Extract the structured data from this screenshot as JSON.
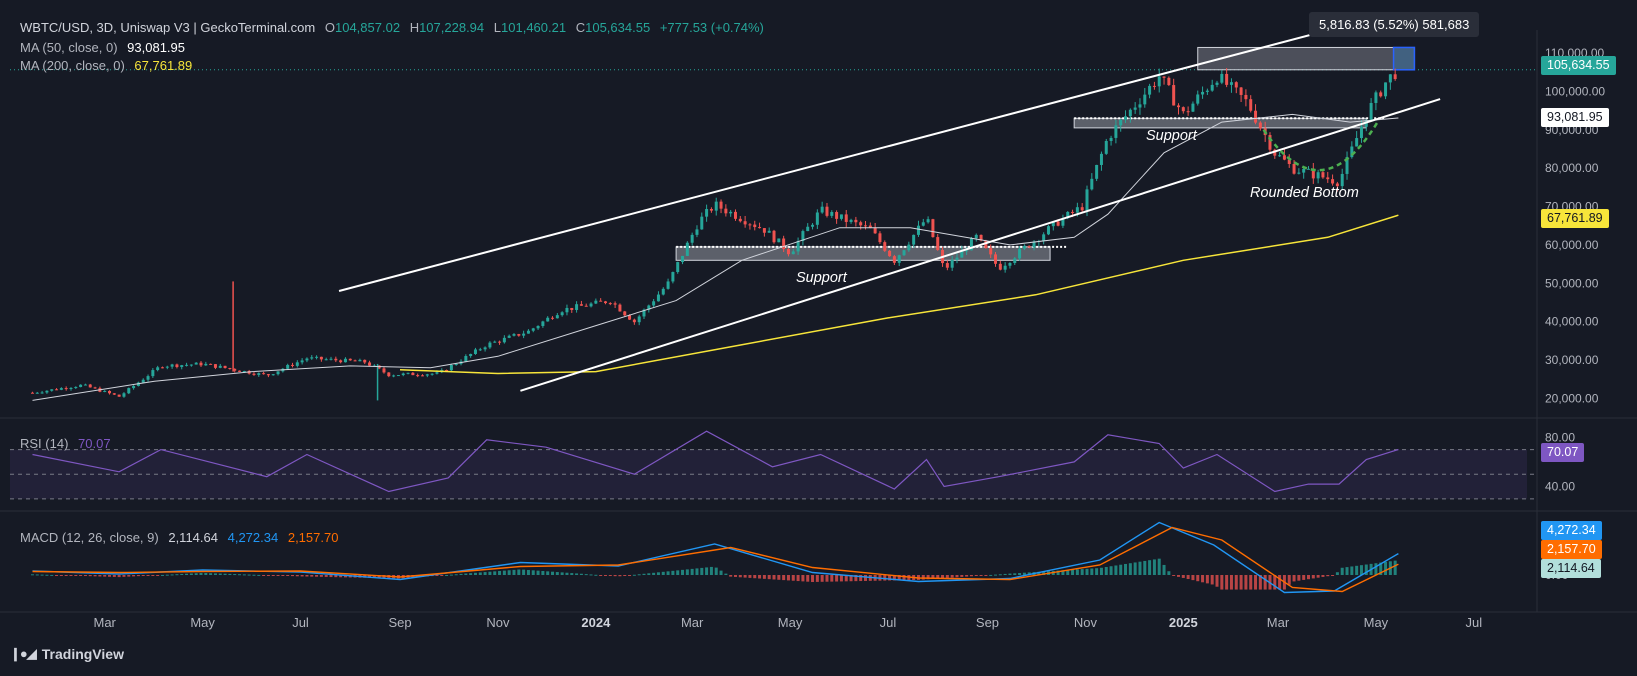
{
  "header": {
    "symbol": "WBTC/USD, 3D, Uniswap V3 | GeckoTerminal.com",
    "o_label": "O",
    "o": "104,857.02",
    "h_label": "H",
    "h": "107,228.94",
    "l_label": "L",
    "l": "101,460.21",
    "c_label": "C",
    "c": "105,634.55",
    "change": "+777.53 (+0.74%)",
    "ma50_label": "MA (50, close, 0)",
    "ma50_value": "93,081.95",
    "ma200_label": "MA (200, close, 0)",
    "ma200_value": "67,761.89"
  },
  "measure_tooltip": "5,816.83 (5.52%) 581,683",
  "price_badges": {
    "last": "105,634.55",
    "ma50": "93,081.95",
    "ma200": "67,761.89"
  },
  "annotations": {
    "support_left": "Support",
    "support_right": "Support",
    "rounded_bottom": "Rounded Bottom"
  },
  "rsi": {
    "label": "RSI (14)",
    "value": "70.07",
    "ticks": [
      "80.00",
      "40.00"
    ]
  },
  "macd": {
    "label": "MACD (12, 26, close, 9)",
    "hist": "2,114.64",
    "macd": "4,272.34",
    "signal": "2,157.70",
    "ticks": [
      "0.00"
    ]
  },
  "brand": "TradingView",
  "colors": {
    "background": "#161a25",
    "up": "#26a69a",
    "down": "#ef5350",
    "ma50": "#d1d4dc",
    "ma200": "#f7e53a",
    "rsi": "#7e57c2",
    "macd": "#2196f3",
    "signal": "#ff6d00"
  },
  "chart_data": {
    "type": "candlestick",
    "title": "WBTC/USD, 3D, Uniswap V3",
    "ylim": [
      17000,
      116000
    ],
    "y_ticks": [
      20000,
      30000,
      40000,
      50000,
      60000,
      70000,
      80000,
      90000,
      100000,
      110000
    ],
    "y_tick_labels": [
      "20,000.00",
      "30,000.00",
      "40,000.00",
      "50,000.00",
      "60,000.00",
      "70,000.00",
      "80,000.00",
      "90,000.00",
      "100,000.00",
      "110,000.00"
    ],
    "x_ticks": [
      "Mar",
      "May",
      "Jul",
      "Sep",
      "Nov",
      "2024",
      "Mar",
      "May",
      "Jul",
      "Sep",
      "Nov",
      "2025",
      "Mar",
      "May",
      "Jul"
    ],
    "x_tick_dates": [
      "2023-03-01",
      "2023-05-01",
      "2023-07-01",
      "2023-09-01",
      "2023-11-01",
      "2024-01-01",
      "2024-03-01",
      "2024-05-01",
      "2024-07-01",
      "2024-09-01",
      "2024-11-01",
      "2025-01-01",
      "2025-03-01",
      "2025-05-01",
      "2025-07-01"
    ],
    "price_path": [
      [
        "2023-01-15",
        21500
      ],
      [
        "2023-02-15",
        23500
      ],
      [
        "2023-03-10",
        20500
      ],
      [
        "2023-04-05",
        28500
      ],
      [
        "2023-05-01",
        29000
      ],
      [
        "2023-06-10",
        26000
      ],
      [
        "2023-07-05",
        30500
      ],
      [
        "2023-08-10",
        29500
      ],
      [
        "2023-08-25",
        26200
      ],
      [
        "2023-09-25",
        26500
      ],
      [
        "2023-10-25",
        34000
      ],
      [
        "2023-11-20",
        37500
      ],
      [
        "2023-12-10",
        43000
      ],
      [
        "2024-01-10",
        45500
      ],
      [
        "2024-01-25",
        40000
      ],
      [
        "2024-02-15",
        50000
      ],
      [
        "2024-03-05",
        66000
      ],
      [
        "2024-03-15",
        70500
      ],
      [
        "2024-04-15",
        64000
      ],
      [
        "2024-05-01",
        58000
      ],
      [
        "2024-05-20",
        69000
      ],
      [
        "2024-06-20",
        64000
      ],
      [
        "2024-07-05",
        56000
      ],
      [
        "2024-07-25",
        67000
      ],
      [
        "2024-08-05",
        53500
      ],
      [
        "2024-08-25",
        62000
      ],
      [
        "2024-09-08",
        54000
      ],
      [
        "2024-10-15",
        66000
      ],
      [
        "2024-10-30",
        70000
      ],
      [
        "2024-11-15",
        88000
      ],
      [
        "2024-12-17",
        104000
      ],
      [
        "2025-01-01",
        94000
      ],
      [
        "2025-01-22",
        104000
      ],
      [
        "2025-02-10",
        97000
      ],
      [
        "2025-02-27",
        84000
      ],
      [
        "2025-03-10",
        80000
      ],
      [
        "2025-04-08",
        76500
      ],
      [
        "2025-04-25",
        94000
      ],
      [
        "2025-05-08",
        103000
      ],
      [
        "2025-05-15",
        105634.55
      ]
    ],
    "ma50_path": [
      [
        "2023-01-15",
        19500
      ],
      [
        "2023-04-01",
        24500
      ],
      [
        "2023-06-01",
        27000
      ],
      [
        "2023-08-01",
        28500
      ],
      [
        "2023-09-20",
        28000
      ],
      [
        "2023-11-01",
        31000
      ],
      [
        "2024-01-01",
        39000
      ],
      [
        "2024-02-20",
        45500
      ],
      [
        "2024-04-01",
        56000
      ],
      [
        "2024-06-01",
        64500
      ],
      [
        "2024-07-15",
        64500
      ],
      [
        "2024-09-15",
        60000
      ],
      [
        "2024-10-25",
        62000
      ],
      [
        "2024-11-15",
        68000
      ],
      [
        "2024-12-20",
        84000
      ],
      [
        "2025-01-25",
        92000
      ],
      [
        "2025-03-10",
        94000
      ],
      [
        "2025-04-15",
        92000
      ],
      [
        "2025-05-15",
        93081.95
      ]
    ],
    "ma200_path": [
      [
        "2023-09-01",
        27500
      ],
      [
        "2023-11-01",
        26500
      ],
      [
        "2024-01-01",
        27000
      ],
      [
        "2024-04-01",
        34000
      ],
      [
        "2024-07-01",
        41000
      ],
      [
        "2024-10-01",
        47000
      ],
      [
        "2025-01-01",
        56000
      ],
      [
        "2025-04-01",
        62000
      ],
      [
        "2025-05-15",
        67761.89
      ]
    ],
    "trend_lines": {
      "upper_channel": [
        [
          "2023-07-25",
          48000
        ],
        [
          "2025-04-20",
          118000
        ]
      ],
      "lower_channel": [
        [
          "2023-11-15",
          22000
        ],
        [
          "2025-06-10",
          98000
        ]
      ]
    },
    "support_zones": [
      {
        "label": "Support",
        "x0": "2024-02-20",
        "x1": "2024-10-10",
        "y0": 56000,
        "y1": 59500
      },
      {
        "label": "Support",
        "x0": "2024-10-25",
        "x1": "2025-04-25",
        "y0": 90500,
        "y1": 93000
      }
    ],
    "measure_box": {
      "x0": "2025-01-10",
      "x1": "2025-05-25",
      "y0": 105634.55,
      "y1": 111451.38
    },
    "rsi_path": [
      [
        "2023-01-15",
        66
      ],
      [
        "2023-03-10",
        52
      ],
      [
        "2023-04-05",
        70
      ],
      [
        "2023-06-10",
        48
      ],
      [
        "2023-07-05",
        66
      ],
      [
        "2023-08-25",
        36
      ],
      [
        "2023-10-01",
        47
      ],
      [
        "2023-10-25",
        78
      ],
      [
        "2023-12-01",
        72
      ],
      [
        "2024-01-25",
        50
      ],
      [
        "2024-03-10",
        85
      ],
      [
        "2024-04-20",
        56
      ],
      [
        "2024-05-20",
        66
      ],
      [
        "2024-07-05",
        38
      ],
      [
        "2024-07-25",
        62
      ],
      [
        "2024-08-05",
        40
      ],
      [
        "2024-09-08",
        48
      ],
      [
        "2024-10-25",
        60
      ],
      [
        "2024-11-15",
        82
      ],
      [
        "2024-12-17",
        75
      ],
      [
        "2025-01-01",
        55
      ],
      [
        "2025-01-22",
        66
      ],
      [
        "2025-02-27",
        36
      ],
      [
        "2025-03-20",
        42
      ],
      [
        "2025-04-08",
        42
      ],
      [
        "2025-04-25",
        62
      ],
      [
        "2025-05-15",
        70.07
      ]
    ],
    "rsi_band": [
      30,
      70
    ],
    "rsi_ylim": [
      25,
      90
    ],
    "macd_path": [
      [
        "2023-01-15",
        800
      ],
      [
        "2023-03-10",
        200
      ],
      [
        "2023-05-01",
        1000
      ],
      [
        "2023-07-01",
        600
      ],
      [
        "2023-09-01",
        -900
      ],
      [
        "2023-11-15",
        2500
      ],
      [
        "2024-01-15",
        1800
      ],
      [
        "2024-03-15",
        6200
      ],
      [
        "2024-05-15",
        500
      ],
      [
        "2024-07-20",
        -1300
      ],
      [
        "2024-09-15",
        -700
      ],
      [
        "2024-11-10",
        3000
      ],
      [
        "2024-12-17",
        10500
      ],
      [
        "2025-01-20",
        6000
      ],
      [
        "2025-03-05",
        -3500
      ],
      [
        "2025-04-05",
        -3200
      ],
      [
        "2025-05-15",
        4272.34
      ]
    ],
    "signal_path": [
      [
        "2023-01-15",
        700
      ],
      [
        "2023-03-10",
        500
      ],
      [
        "2023-05-01",
        700
      ],
      [
        "2023-07-01",
        800
      ],
      [
        "2023-09-01",
        -400
      ],
      [
        "2023-11-15",
        1700
      ],
      [
        "2024-01-15",
        2000
      ],
      [
        "2024-03-25",
        5500
      ],
      [
        "2024-05-15",
        1500
      ],
      [
        "2024-07-20",
        -600
      ],
      [
        "2024-09-15",
        -900
      ],
      [
        "2024-11-10",
        2000
      ],
      [
        "2024-12-25",
        9500
      ],
      [
        "2025-01-25",
        7000
      ],
      [
        "2025-03-10",
        -2500
      ],
      [
        "2025-04-10",
        -3300
      ],
      [
        "2025-05-15",
        2157.7
      ]
    ],
    "macd_ylim": [
      -6000,
      12000
    ]
  }
}
